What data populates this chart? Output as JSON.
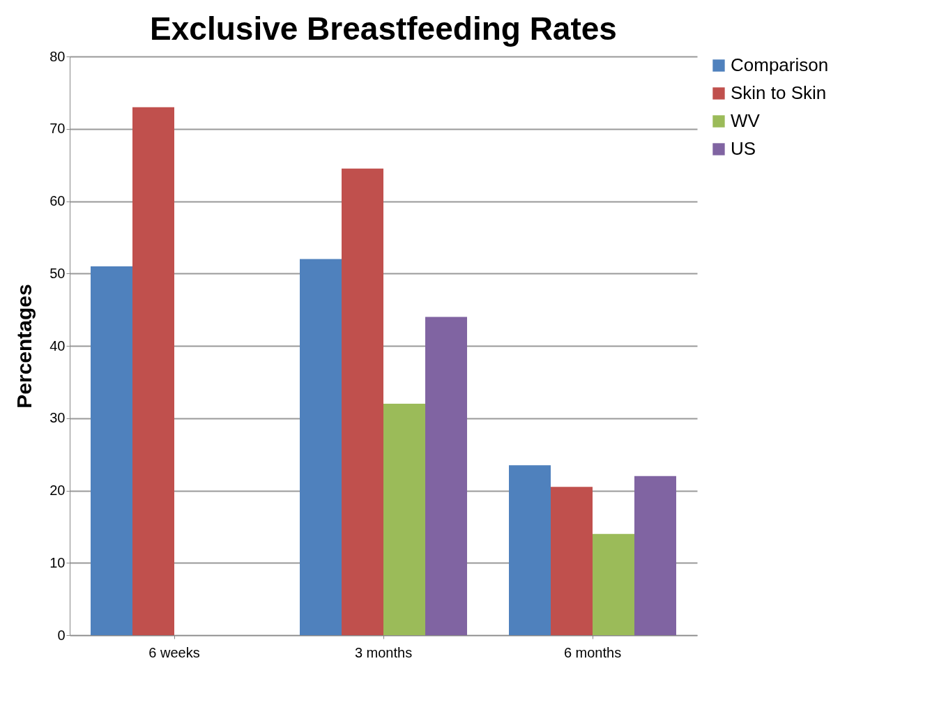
{
  "chart_data": {
    "type": "bar",
    "title": "Exclusive Breastfeeding Rates",
    "ylabel": "Percentages",
    "categories": [
      "6 weeks",
      "3 months",
      "6 months"
    ],
    "series": [
      {
        "name": "Comparison",
        "color": "#4f81bd",
        "values": [
          51,
          52,
          23.5
        ]
      },
      {
        "name": "Skin to Skin",
        "color": "#c0504d",
        "values": [
          73,
          64.5,
          20.5
        ]
      },
      {
        "name": "WV",
        "color": "#9bbb59",
        "values": [
          null,
          32,
          14
        ]
      },
      {
        "name": "US",
        "color": "#8064a2",
        "values": [
          null,
          44,
          22
        ]
      }
    ],
    "ylim": [
      0,
      80
    ],
    "yticks": [
      0,
      10,
      20,
      30,
      40,
      50,
      60,
      70,
      80
    ],
    "grid": "y",
    "legend": "right"
  }
}
